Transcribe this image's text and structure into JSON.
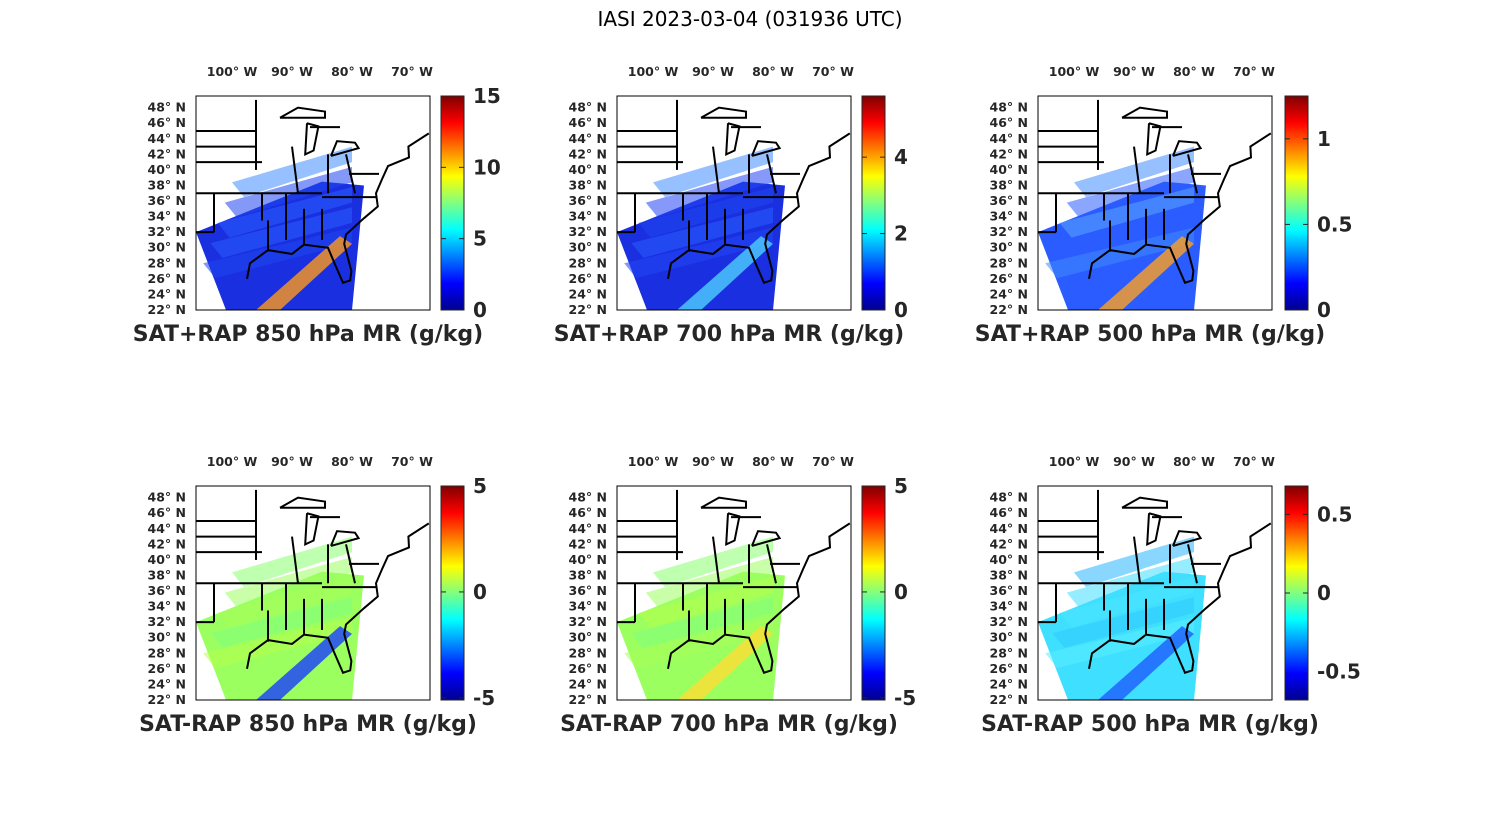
{
  "figure_title": "IASI 2023-03-04 (031936 UTC)",
  "lon_ticks": [
    "100° W",
    "90° W",
    "80° W",
    "70° W"
  ],
  "lon_values": [
    -100,
    -90,
    -80,
    -70
  ],
  "lat_ticks": [
    "48° N",
    "46° N",
    "44° N",
    "42° N",
    "40° N",
    "38° N",
    "36° N",
    "34° N",
    "32° N",
    "30° N",
    "28° N",
    "26° N",
    "24° N",
    "22° N"
  ],
  "lat_values": [
    48,
    46,
    44,
    42,
    40,
    38,
    36,
    34,
    32,
    30,
    28,
    26,
    24,
    22
  ],
  "map_extent": {
    "lon": [
      -106,
      -67
    ],
    "lat": [
      22,
      49.5
    ]
  },
  "colormap": "jet",
  "panels": [
    {
      "id": "p1",
      "title": "SAT+RAP 850 hPa MR (g/kg)",
      "cbar_range": [
        0,
        15
      ],
      "cbar_ticks": [
        "0",
        "5",
        "10",
        "15"
      ],
      "cbar_tick_values": [
        0,
        5,
        10,
        15
      ]
    },
    {
      "id": "p2",
      "title": "SAT+RAP 700 hPa MR (g/kg)",
      "cbar_range": [
        0,
        5.6
      ],
      "cbar_ticks": [
        "0",
        "2",
        "4"
      ],
      "cbar_tick_values": [
        0,
        2,
        4
      ]
    },
    {
      "id": "p3",
      "title": "SAT+RAP 500 hPa MR (g/kg)",
      "cbar_range": [
        0,
        1.25
      ],
      "cbar_ticks": [
        "0",
        "0.5",
        "1"
      ],
      "cbar_tick_values": [
        0,
        0.5,
        1
      ]
    },
    {
      "id": "p4",
      "title": "SAT-RAP 850 hPa MR (g/kg)",
      "cbar_range": [
        -5.1,
        5
      ],
      "cbar_ticks": [
        "-5",
        "0",
        "5"
      ],
      "cbar_tick_values": [
        -5,
        0,
        5
      ]
    },
    {
      "id": "p5",
      "title": "SAT-RAP 700 hPa MR (g/kg)",
      "cbar_range": [
        -5.1,
        5
      ],
      "cbar_ticks": [
        "-5",
        "0",
        "5"
      ],
      "cbar_tick_values": [
        -5,
        0,
        5
      ]
    },
    {
      "id": "p6",
      "title": "SAT-RAP 500 hPa MR (g/kg)",
      "cbar_range": [
        -0.68,
        0.68
      ],
      "cbar_ticks": [
        "-0.5",
        "0",
        "0.5"
      ],
      "cbar_tick_values": [
        -0.5,
        0,
        0.5
      ]
    }
  ]
}
